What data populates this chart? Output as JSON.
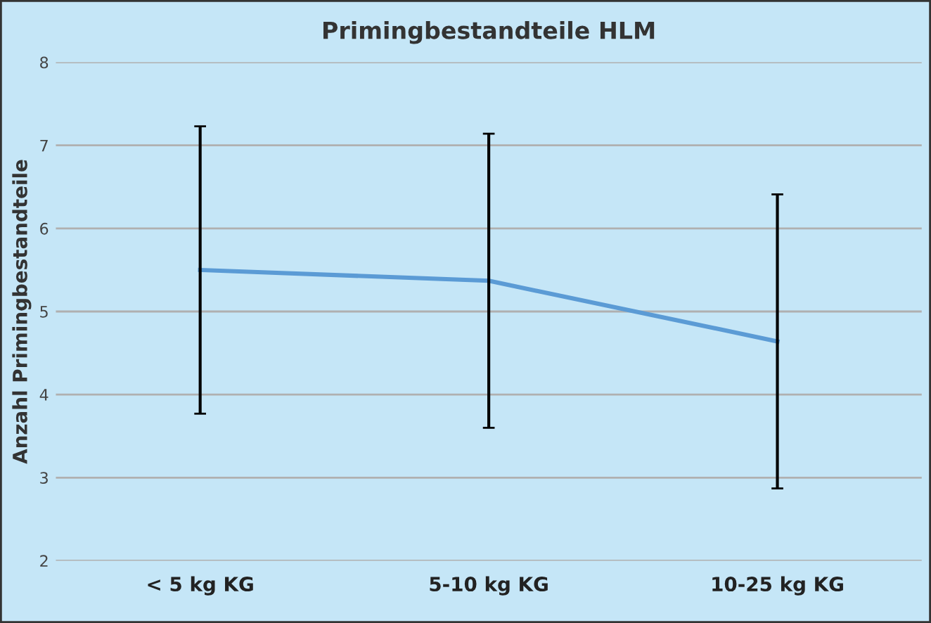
{
  "chart_data": {
    "type": "line",
    "title": "Primingbestandteile HLM",
    "ylabel": "Anzahl Primingbestandteile",
    "categories": [
      "< 5 kg KG",
      "5-10 kg KG",
      "10-25 kg KG"
    ],
    "series": [
      {
        "color": "#5b9bd5",
        "values": [
          5.5,
          5.37,
          4.64
        ],
        "errors": [
          1.73,
          1.77,
          1.77
        ]
      }
    ],
    "ylim": [
      2,
      8
    ],
    "yticks": [
      2,
      3,
      4,
      5,
      6,
      7,
      8
    ],
    "grid": "y",
    "legend": false,
    "marker": "none",
    "line_style": "solid"
  }
}
